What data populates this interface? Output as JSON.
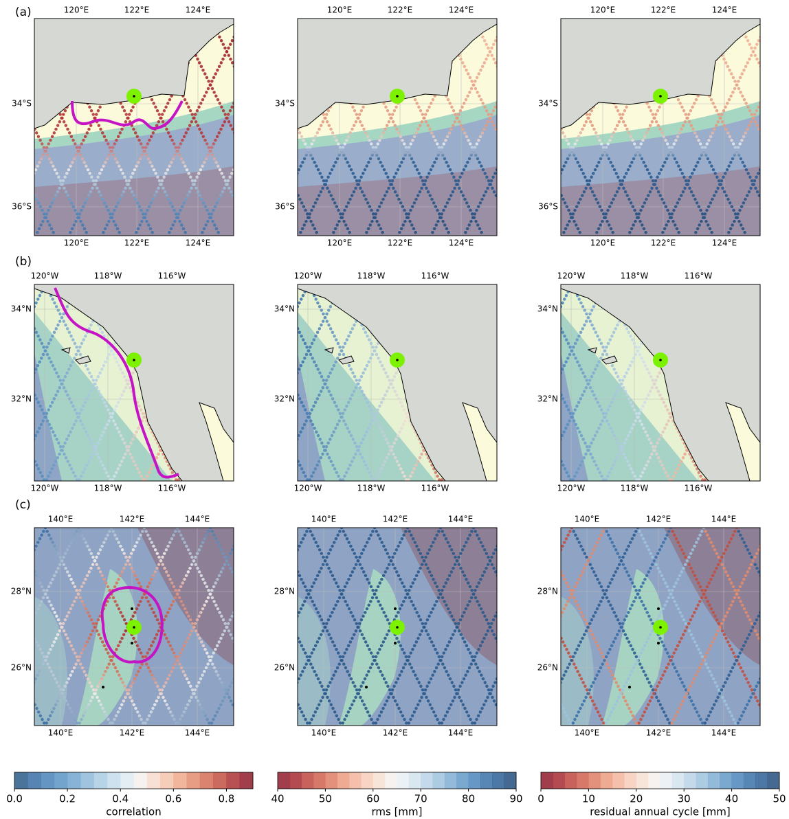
{
  "rows": [
    {
      "label": "(a)",
      "xticks": [
        "120°E",
        "122°E",
        "124°E"
      ],
      "yticks": [
        "34°S",
        "36°S"
      ]
    },
    {
      "label": "(b)",
      "xticks": [
        "120°W",
        "118°W",
        "116°W"
      ],
      "yticks": [
        "34°N",
        "32°N"
      ]
    },
    {
      "label": "(c)",
      "xticks": [
        "140°E",
        "142°E",
        "144°E"
      ],
      "yticks": [
        "28°N",
        "26°N"
      ]
    }
  ],
  "colorbars": [
    {
      "label": "correlation",
      "lim": [
        0,
        0.9
      ],
      "ticks": [
        {
          "value": 0,
          "label": "0.0"
        },
        0.2,
        0.4,
        0.6,
        0.8
      ],
      "colors": [
        "#2b5c8a",
        "#3a6fa5",
        "#4a82b8",
        "#5b94c4",
        "#73a6cf",
        "#8fb9da",
        "#aacce3",
        "#c5dcec",
        "#deeaf2",
        "#f4f0ec",
        "#f7dccd",
        "#f5c4ac",
        "#efa98b",
        "#e38c6e",
        "#d46e56",
        "#c25042",
        "#ac3236",
        "#8f1d2c"
      ]
    },
    {
      "label": "rms [mm]",
      "lim": [
        40,
        90
      ],
      "ticks": [
        40,
        50,
        60,
        70,
        80,
        90
      ],
      "colors": [
        "#8f1d2c",
        "#a82b34",
        "#bd4640",
        "#cf6250",
        "#de7e66",
        "#eb9b80",
        "#f2b59c",
        "#f6cdb9",
        "#f7e1d4",
        "#f6f0ec",
        "#e7eef3",
        "#d2e3ee",
        "#bad4e6",
        "#9ec3dd",
        "#80afd2",
        "#6399c6",
        "#4c85ba",
        "#3b71a8",
        "#2e5f94",
        "#254f7e"
      ]
    },
    {
      "label": "residual annual cycle [mm]",
      "lim": [
        0,
        50
      ],
      "ticks": [
        0,
        10,
        20,
        30,
        40,
        50
      ],
      "colors": [
        "#8f1d2c",
        "#a82b34",
        "#bd4640",
        "#cf6250",
        "#de7e66",
        "#eb9b80",
        "#f2b59c",
        "#f6cdb9",
        "#f7e1d4",
        "#f6f0ec",
        "#e7eef3",
        "#d2e3ee",
        "#bad4e6",
        "#9ec3dd",
        "#80afd2",
        "#6399c6",
        "#4c85ba",
        "#3b71a8",
        "#2e5f94",
        "#254f7e"
      ]
    }
  ]
}
